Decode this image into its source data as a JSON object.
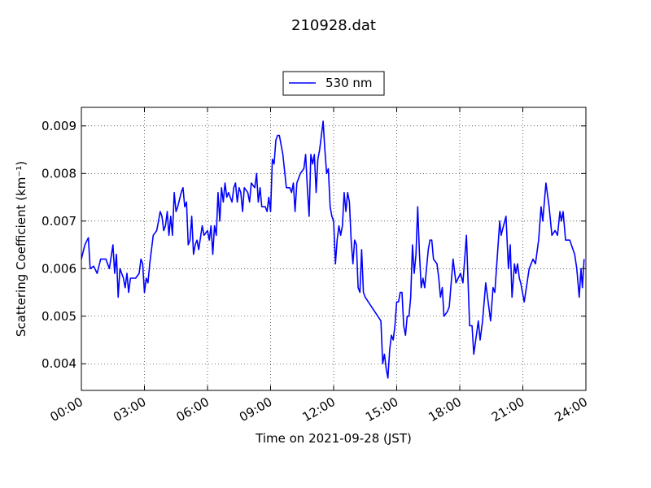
{
  "chart_data": {
    "type": "line",
    "title": "210928.dat",
    "xlabel": "Time on 2021-09-28 (JST)",
    "ylabel": "Scattering Coefficient (km⁻¹)",
    "xlim": [
      "00:00",
      "24:00"
    ],
    "xticks": [
      "00:00",
      "03:00",
      "06:00",
      "09:00",
      "12:00",
      "15:00",
      "18:00",
      "21:00",
      "24:00"
    ],
    "ylim": [
      0.00344,
      0.00939
    ],
    "yticks": [
      0.004,
      0.005,
      0.006,
      0.007,
      0.008,
      0.009
    ],
    "grid": true,
    "legend": "upper center",
    "x": [
      "00:00",
      "00:10",
      "00:20",
      "00:25",
      "00:35",
      "00:45",
      "00:55",
      "01:10",
      "01:20",
      "01:30",
      "01:35",
      "01:40",
      "01:45",
      "01:50",
      "02:00",
      "02:05",
      "02:10",
      "02:15",
      "02:20",
      "02:35",
      "02:45",
      "02:50",
      "02:55",
      "03:00",
      "03:05",
      "03:10",
      "03:15",
      "03:25",
      "03:35",
      "03:45",
      "03:50",
      "03:55",
      "04:00",
      "04:05",
      "04:10",
      "04:15",
      "04:20",
      "04:25",
      "04:30",
      "04:35",
      "04:45",
      "04:50",
      "04:55",
      "05:00",
      "05:05",
      "05:10",
      "05:15",
      "05:20",
      "05:25",
      "05:30",
      "05:35",
      "05:45",
      "05:50",
      "06:00",
      "06:05",
      "06:10",
      "06:15",
      "06:20",
      "06:25",
      "06:30",
      "06:35",
      "06:40",
      "06:45",
      "06:50",
      "06:55",
      "07:00",
      "07:10",
      "07:15",
      "07:20",
      "07:25",
      "07:30",
      "07:35",
      "07:40",
      "07:45",
      "07:55",
      "08:00",
      "08:05",
      "08:15",
      "08:20",
      "08:25",
      "08:30",
      "08:35",
      "08:45",
      "08:50",
      "08:55",
      "09:00",
      "09:05",
      "09:10",
      "09:15",
      "09:20",
      "09:25",
      "09:35",
      "09:45",
      "09:55",
      "10:00",
      "10:05",
      "10:10",
      "10:15",
      "10:25",
      "10:35",
      "10:40",
      "10:45",
      "10:50",
      "10:55",
      "11:00",
      "11:05",
      "11:10",
      "11:15",
      "11:20",
      "11:30",
      "11:35",
      "11:40",
      "11:45",
      "11:50",
      "11:55",
      "12:00",
      "12:05",
      "12:10",
      "12:15",
      "12:20",
      "12:25",
      "12:30",
      "12:35",
      "12:40",
      "12:45",
      "12:50",
      "12:55",
      "13:00",
      "13:05",
      "13:10",
      "13:15",
      "13:20",
      "13:25",
      "13:30",
      "14:15",
      "14:20",
      "14:25",
      "14:30",
      "14:35",
      "14:40",
      "14:45",
      "14:50",
      "14:55",
      "15:00",
      "15:05",
      "15:10",
      "15:15",
      "15:20",
      "15:25",
      "15:30",
      "15:35",
      "15:40",
      "15:45",
      "15:50",
      "15:55",
      "16:00",
      "16:05",
      "16:10",
      "16:15",
      "16:20",
      "16:30",
      "16:35",
      "16:40",
      "16:45",
      "16:55",
      "17:00",
      "17:05",
      "17:10",
      "17:15",
      "17:25",
      "17:30",
      "17:41",
      "17:49",
      "18:02",
      "18:09",
      "18:19",
      "18:28",
      "18:35",
      "18:40",
      "18:53",
      "18:58",
      "19:05",
      "19:14",
      "19:21",
      "19:28",
      "19:35",
      "19:40",
      "19:54",
      "19:58",
      "20:05",
      "20:12",
      "20:19",
      "20:24",
      "20:29",
      "20:36",
      "20:40",
      "20:45",
      "20:50",
      "20:54",
      "21:04",
      "21:18",
      "21:29",
      "21:36",
      "21:45",
      "21:52",
      "21:57",
      "22:06",
      "22:15",
      "22:23",
      "22:32",
      "22:39",
      "22:46",
      "22:50",
      "22:55",
      "23:02",
      "23:14",
      "23:28",
      "23:34",
      "23:41",
      "23:46",
      "23:50",
      "23:55"
    ],
    "series": [
      {
        "name": "530 nm",
        "color": "#0000ff",
        "values": [
          0.0062,
          0.0065,
          0.00665,
          0.006,
          0.00605,
          0.0059,
          0.0062,
          0.0062,
          0.006,
          0.0065,
          0.0059,
          0.0063,
          0.0054,
          0.006,
          0.0058,
          0.0056,
          0.0059,
          0.0055,
          0.0058,
          0.0058,
          0.0059,
          0.0062,
          0.0061,
          0.0055,
          0.0058,
          0.0057,
          0.0061,
          0.0067,
          0.0068,
          0.0072,
          0.0071,
          0.0068,
          0.0069,
          0.0072,
          0.0067,
          0.0071,
          0.0067,
          0.0076,
          0.0072,
          0.0073,
          0.0076,
          0.0077,
          0.0073,
          0.0074,
          0.0065,
          0.0066,
          0.0071,
          0.0063,
          0.0065,
          0.0066,
          0.0064,
          0.0069,
          0.0067,
          0.0068,
          0.0066,
          0.0069,
          0.0063,
          0.0069,
          0.0067,
          0.0076,
          0.007,
          0.0077,
          0.0074,
          0.0078,
          0.0075,
          0.0076,
          0.0074,
          0.0077,
          0.0078,
          0.0074,
          0.0077,
          0.0076,
          0.0072,
          0.0077,
          0.0076,
          0.0074,
          0.0078,
          0.0077,
          0.008,
          0.0074,
          0.0077,
          0.0073,
          0.0073,
          0.0072,
          0.0075,
          0.0072,
          0.0083,
          0.0082,
          0.0087,
          0.0088,
          0.0088,
          0.0084,
          0.0077,
          0.0077,
          0.0076,
          0.0078,
          0.0072,
          0.0078,
          0.008,
          0.0081,
          0.0084,
          0.0077,
          0.0071,
          0.0084,
          0.0082,
          0.0084,
          0.0076,
          0.0083,
          0.0085,
          0.0091,
          0.0085,
          0.008,
          0.0081,
          0.0073,
          0.0071,
          0.007,
          0.0061,
          0.0066,
          0.0069,
          0.0067,
          0.0069,
          0.0076,
          0.0072,
          0.0076,
          0.0074,
          0.0066,
          0.0061,
          0.0066,
          0.0065,
          0.0056,
          0.0055,
          0.0064,
          0.0055,
          0.0054,
          0.0049,
          0.004,
          0.0042,
          0.0039,
          0.0037,
          0.0043,
          0.0046,
          0.0045,
          0.0048,
          0.0053,
          0.0053,
          0.0055,
          0.0055,
          0.0048,
          0.0046,
          0.005,
          0.005,
          0.0054,
          0.0065,
          0.0059,
          0.0063,
          0.0073,
          0.0063,
          0.0056,
          0.0058,
          0.0056,
          0.0064,
          0.0066,
          0.0066,
          0.0062,
          0.0061,
          0.0058,
          0.0054,
          0.0056,
          0.005,
          0.0051,
          0.0052,
          0.0062,
          0.0057,
          0.0059,
          0.0057,
          0.0067,
          0.0048,
          0.0048,
          0.0042,
          0.0049,
          0.0045,
          0.0049,
          0.0057,
          0.0053,
          0.0049,
          0.0056,
          0.0055,
          0.007,
          0.0067,
          0.0069,
          0.0071,
          0.006,
          0.0065,
          0.0054,
          0.0061,
          0.0059,
          0.0061,
          0.0058,
          0.0057,
          0.0053,
          0.006,
          0.0062,
          0.0061,
          0.0066,
          0.0073,
          0.007,
          0.0078,
          0.0073,
          0.0067,
          0.0068,
          0.0067,
          0.0072,
          0.007,
          0.0072,
          0.0066,
          0.0066,
          0.0063,
          0.006,
          0.0054,
          0.006,
          0.0056,
          0.0062
        ]
      }
    ]
  }
}
